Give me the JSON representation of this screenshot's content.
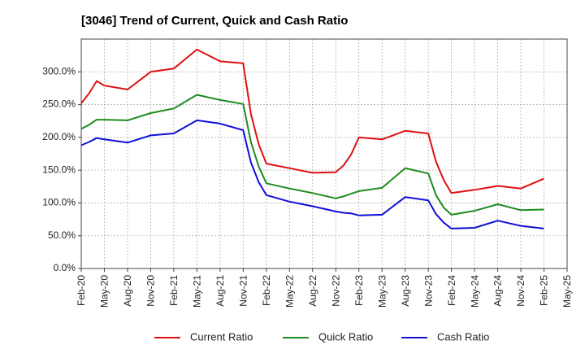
{
  "chart_data": {
    "type": "line",
    "title": "[3046]  Trend of Current, Quick and Cash Ratio",
    "xlabel": "",
    "ylabel": "",
    "ylim": [
      0,
      350
    ],
    "yticks": [
      0,
      50,
      100,
      150,
      200,
      250,
      300
    ],
    "ytick_labels": [
      "0.0%",
      "50.0%",
      "100.0%",
      "150.0%",
      "200.0%",
      "250.0%",
      "300.0%"
    ],
    "x_range_months": [
      0,
      63
    ],
    "xticks": [
      0,
      3,
      6,
      9,
      12,
      15,
      18,
      21,
      24,
      27,
      30,
      33,
      36,
      39,
      42,
      45,
      48,
      51,
      54,
      57,
      60,
      63
    ],
    "xtick_labels": [
      "Feb-20",
      "May-20",
      "Aug-20",
      "Nov-20",
      "Feb-21",
      "May-21",
      "Aug-21",
      "Nov-21",
      "Feb-22",
      "May-22",
      "Aug-22",
      "Nov-22",
      "Feb-23",
      "May-23",
      "Aug-23",
      "Nov-23",
      "Feb-24",
      "May-24",
      "Aug-24",
      "Nov-24",
      "Feb-25",
      "May-25"
    ],
    "grid": true,
    "legend_position": "bottom",
    "series": [
      {
        "name": "Current Ratio",
        "color": "#e01010",
        "x": [
          0,
          1,
          2,
          3,
          6,
          9,
          12,
          15,
          18,
          21,
          22,
          23,
          24,
          27,
          30,
          33,
          34,
          35,
          36,
          39,
          42,
          45,
          46,
          47,
          48,
          51,
          54,
          57,
          60
        ],
        "values": [
          252,
          267,
          286,
          279,
          273,
          300,
          305,
          334,
          316,
          313,
          236,
          190,
          160,
          153,
          146,
          147,
          157,
          174,
          200,
          197,
          210,
          206,
          163,
          135,
          115,
          120,
          126,
          122,
          137
        ]
      },
      {
        "name": "Quick Ratio",
        "color": "#1e8c1e",
        "x": [
          0,
          1,
          2,
          3,
          6,
          9,
          12,
          15,
          18,
          21,
          22,
          23,
          24,
          27,
          30,
          33,
          34,
          35,
          36,
          39,
          42,
          45,
          46,
          47,
          48,
          51,
          54,
          57,
          60
        ],
        "values": [
          213,
          219,
          227,
          227,
          226,
          237,
          244,
          265,
          257,
          251,
          193,
          156,
          130,
          122,
          115,
          107,
          110,
          114,
          118,
          123,
          153,
          145,
          112,
          93,
          82,
          88,
          98,
          89,
          90
        ]
      },
      {
        "name": "Cash Ratio",
        "color": "#1010d8",
        "x": [
          0,
          1,
          2,
          3,
          6,
          9,
          12,
          15,
          18,
          21,
          22,
          23,
          24,
          27,
          30,
          33,
          34,
          35,
          36,
          39,
          42,
          45,
          46,
          47,
          48,
          51,
          54,
          57,
          60
        ],
        "values": [
          188,
          193,
          199,
          197,
          192,
          203,
          206,
          226,
          221,
          211,
          162,
          132,
          112,
          102,
          95,
          87,
          85,
          84,
          81,
          82,
          109,
          104,
          83,
          70,
          61,
          62,
          73,
          65,
          61
        ]
      }
    ]
  }
}
